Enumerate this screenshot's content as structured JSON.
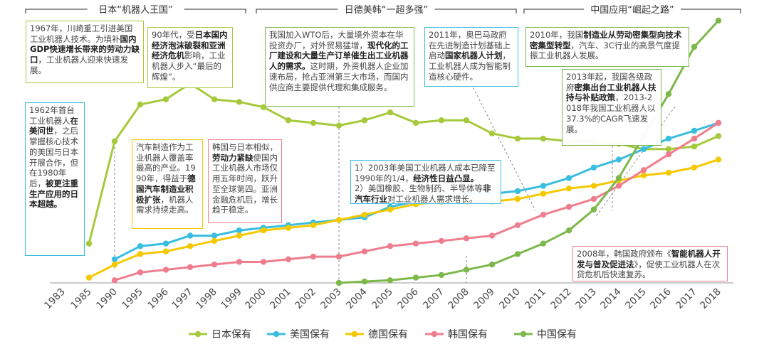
{
  "chart_data": {
    "type": "line",
    "title": "",
    "xlabel": "",
    "ylabel": "",
    "categories": [
      "1983",
      "1985",
      "1990",
      "1995",
      "1996",
      "1997",
      "1998",
      "1999",
      "2000",
      "2001",
      "2002",
      "2003",
      "2004",
      "2005",
      "2006",
      "2007",
      "2008",
      "2009",
      "2010",
      "2011",
      "2012",
      "2013",
      "2014",
      "2015",
      "2016",
      "2017",
      "2018"
    ],
    "ylim": [
      0,
      100
    ],
    "legend_position": "bottom",
    "series": [
      {
        "name": "日本保有",
        "color": "#a6c93b",
        "values": [
          null,
          15,
          54,
          68,
          70,
          76,
          70,
          69,
          67,
          62,
          61,
          60,
          62,
          65,
          61,
          62,
          62,
          57,
          55,
          55,
          54,
          54,
          53,
          51,
          51,
          52,
          56
        ]
      },
      {
        "name": "美国保有",
        "color": "#39bde0",
        "values": [
          null,
          null,
          9,
          14,
          15,
          18,
          18,
          20,
          21,
          22,
          23,
          24,
          25,
          29,
          31,
          33,
          34,
          34,
          35,
          37,
          40,
          44,
          47,
          51,
          55,
          58,
          61
        ]
      },
      {
        "name": "德国保有",
        "color": "#f5c800",
        "values": [
          null,
          2,
          7,
          11,
          12,
          14,
          16,
          18,
          20,
          21,
          22,
          24,
          26,
          28,
          30,
          31,
          31,
          31,
          32,
          34,
          36,
          37,
          39,
          41,
          42,
          44,
          47
        ]
      },
      {
        "name": "韩国保有",
        "color": "#ee7e8e",
        "values": [
          null,
          null,
          1,
          4,
          5,
          6,
          7,
          8,
          8,
          9,
          10,
          10,
          12,
          14,
          15,
          16,
          17,
          18,
          22,
          26,
          29,
          32,
          37,
          43,
          49,
          55,
          61
        ]
      },
      {
        "name": "中国保有",
        "color": "#7db84a",
        "values": [
          null,
          null,
          null,
          null,
          null,
          null,
          null,
          null,
          null,
          null,
          null,
          0,
          0.5,
          1,
          2,
          3,
          5,
          7,
          11,
          15,
          20,
          28,
          40,
          56,
          72,
          90,
          100
        ]
      }
    ],
    "eras": [
      {
        "title": "日本“机器人王国”"
      },
      {
        "title": "日德美韩“一超多强”"
      },
      {
        "title": "中国应用“崛起之路”"
      }
    ]
  },
  "annotations": [
    {
      "id": "a1967",
      "color": "#a6c93b",
      "runs": [
        {
          "t": "1967年，川崎重工引进美国工业机器人技术。为填补"
        },
        {
          "t": "国内GDP快速增长带来的劳动力缺口",
          "b": true
        },
        {
          "t": "，工业机器人迎来快速发展。"
        }
      ]
    },
    {
      "id": "a1962",
      "color": "#39bde0",
      "runs": [
        {
          "t": "1962年首台工业机器人"
        },
        {
          "t": "在美问世",
          "b": true
        },
        {
          "t": "，之后掌握核心技术的美国与日本开展合作，但在1980年后，"
        },
        {
          "t": "被更注重生产应用的日本超越。",
          "b": true
        }
      ]
    },
    {
      "id": "a90s",
      "color": "#a6c93b",
      "runs": [
        {
          "t": "90年代，受"
        },
        {
          "t": "日本国内经济泡沫破裂和亚洲经济危机",
          "b": true
        },
        {
          "t": "影响，工业机器人步入“最后的辉煌”。"
        }
      ]
    },
    {
      "id": "aauto",
      "color": "#f5c800",
      "runs": [
        {
          "t": "汽车制造作为工业机器人覆盖率最高的产业。1990年，得益于"
        },
        {
          "t": "德国汽车制造业积极扩张",
          "b": true
        },
        {
          "t": "，机器人需求持续走高。"
        }
      ]
    },
    {
      "id": "akorea",
      "color": "#ee7e8e",
      "runs": [
        {
          "t": "韩国与日本相似，"
        },
        {
          "t": "劳动力紧缺",
          "b": true
        },
        {
          "t": "使国内工业机器人市场仅用五年时间，跃升至全球第四。亚洲金融危机后，增长趋于稳定。"
        }
      ]
    },
    {
      "id": "awto",
      "color": "#7db84a",
      "runs": [
        {
          "t": "我国加入WTO后，大量境外资本在华投资办厂，对外贸易猛增，"
        },
        {
          "t": "现代化的工厂建设和大量生产订单催生出工业机器人的需求。",
          "b": true
        },
        {
          "t": "这时期，外资机器人企业加速布局，抢占亚洲第三大市场，而国内供应商主要提供代理和集成服务。"
        }
      ]
    },
    {
      "id": "aus2003",
      "color": "#39bde0",
      "runs": [
        {
          "t": "1）2003年美国工业机器人成本已降至1990年的1/4，"
        },
        {
          "t": "经济性日益凸显。",
          "b": true
        },
        {
          "t": "\n2）美国橡胶、生物制药、半导体等"
        },
        {
          "t": "非汽车行业",
          "b": true
        },
        {
          "t": "对工业机器人需求增长。"
        }
      ]
    },
    {
      "id": "aobama",
      "color": "#39bde0",
      "runs": [
        {
          "t": "2011年，奥巴马政府在先进制造计划基础上启动"
        },
        {
          "t": "国家机器人计划",
          "b": true
        },
        {
          "t": "，工业机器人成为智能制造核心硬件。"
        }
      ]
    },
    {
      "id": "a2010",
      "color": "#7db84a",
      "runs": [
        {
          "t": "2010年，我国"
        },
        {
          "t": "制造业从劳动密集型向技术密集型转型",
          "b": true
        },
        {
          "t": "，汽车、3C行业的高景气度提振工业机器人发展。"
        }
      ]
    },
    {
      "id": "a2013",
      "color": "#7db84a",
      "runs": [
        {
          "t": "2013年起，我国各级政府"
        },
        {
          "t": "密集出台工业机器人扶持与补贴政策",
          "b": true
        },
        {
          "t": "，2013-2018年我国工业机器人以37.3%的CAGR飞速发展。"
        }
      ]
    },
    {
      "id": "a2008",
      "color": "#ee7e8e",
      "runs": [
        {
          "t": "2008年，韩国政府颁布《"
        },
        {
          "t": "智能机器人开发与普及促进法",
          "b": true
        },
        {
          "t": "》，促使工业机器人在次贷危机后快速复苏。"
        }
      ]
    }
  ]
}
